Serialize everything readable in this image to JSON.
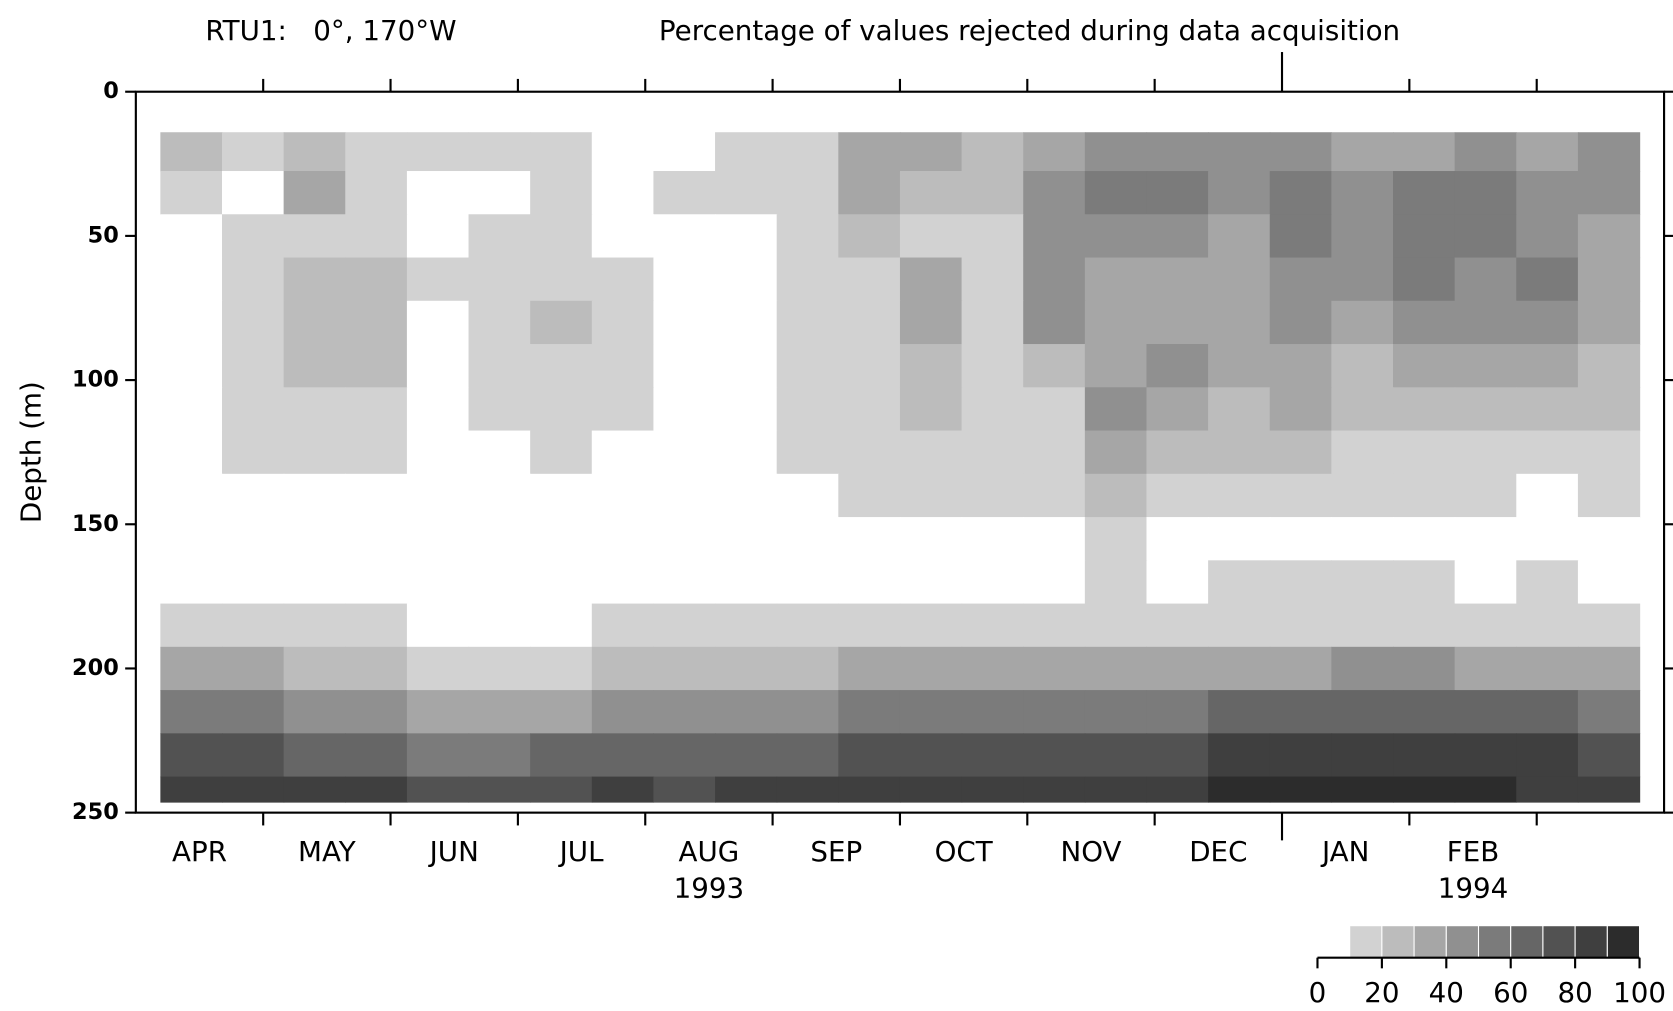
{
  "chart_data": {
    "type": "contour",
    "title": "RTU1:   0°, 170°W",
    "subtitle": "Percentage of values rejected during data acquisition",
    "ylabel": "Depth (m)",
    "ylim": [
      0,
      250
    ],
    "yticks": [
      0,
      50,
      100,
      150,
      200,
      250
    ],
    "categories": [
      "APR",
      "MAY",
      "JUN",
      "JUL",
      "AUG",
      "SEP",
      "OCT",
      "NOV",
      "DEC",
      "JAN",
      "FEB",
      null
    ],
    "years": [
      null,
      null,
      null,
      null,
      "1993",
      null,
      null,
      null,
      null,
      null,
      "1994",
      null
    ],
    "y": [
      20,
      35,
      50,
      65,
      80,
      95,
      110,
      125,
      140,
      155,
      170,
      185,
      200,
      215,
      230,
      245
    ],
    "z": [
      [
        25,
        15,
        25,
        15,
        12,
        12,
        15,
        5,
        5,
        12,
        15,
        35,
        35,
        25,
        35,
        45,
        45,
        45,
        45,
        35,
        35,
        45,
        35,
        45
      ],
      [
        15,
        5,
        35,
        15,
        5,
        5,
        15,
        5,
        12,
        12,
        15,
        35,
        25,
        25,
        45,
        55,
        55,
        45,
        55,
        45,
        55,
        55,
        45,
        45
      ],
      [
        5,
        12,
        15,
        15,
        5,
        12,
        15,
        5,
        5,
        5,
        15,
        25,
        15,
        15,
        45,
        45,
        45,
        35,
        50,
        45,
        55,
        55,
        45,
        35
      ],
      [
        5,
        15,
        25,
        25,
        12,
        15,
        15,
        15,
        5,
        5,
        15,
        15,
        35,
        15,
        45,
        35,
        35,
        35,
        45,
        45,
        55,
        45,
        55,
        35
      ],
      [
        5,
        15,
        25,
        25,
        5,
        15,
        25,
        15,
        5,
        5,
        15,
        15,
        35,
        15,
        45,
        35,
        35,
        35,
        45,
        35,
        45,
        45,
        45,
        35
      ],
      [
        5,
        15,
        22,
        25,
        5,
        15,
        15,
        15,
        5,
        5,
        15,
        15,
        25,
        15,
        25,
        35,
        45,
        35,
        35,
        25,
        35,
        35,
        35,
        25
      ],
      [
        5,
        15,
        15,
        18,
        5,
        12,
        15,
        12,
        5,
        5,
        15,
        15,
        22,
        15,
        15,
        45,
        35,
        25,
        35,
        25,
        25,
        25,
        25,
        25
      ],
      [
        5,
        15,
        15,
        15,
        5,
        5,
        12,
        5,
        5,
        5,
        15,
        15,
        15,
        15,
        15,
        35,
        25,
        25,
        25,
        15,
        15,
        15,
        15,
        15
      ],
      [
        5,
        5,
        5,
        5,
        5,
        5,
        5,
        5,
        5,
        5,
        5,
        12,
        12,
        12,
        12,
        25,
        15,
        15,
        15,
        12,
        15,
        12,
        5,
        15
      ],
      [
        5,
        5,
        5,
        5,
        5,
        5,
        5,
        5,
        5,
        5,
        5,
        5,
        5,
        5,
        5,
        12,
        5,
        5,
        5,
        5,
        5,
        5,
        5,
        5
      ],
      [
        5,
        5,
        5,
        5,
        5,
        5,
        5,
        5,
        5,
        5,
        5,
        5,
        5,
        5,
        5,
        12,
        5,
        12,
        12,
        12,
        12,
        5,
        12,
        5
      ],
      [
        15,
        15,
        12,
        12,
        8,
        8,
        8,
        10,
        10,
        12,
        12,
        15,
        15,
        15,
        15,
        15,
        15,
        15,
        15,
        15,
        15,
        15,
        15,
        15
      ],
      [
        35,
        35,
        25,
        22,
        15,
        15,
        15,
        25,
        22,
        20,
        25,
        30,
        35,
        30,
        35,
        30,
        35,
        35,
        35,
        40,
        40,
        35,
        35,
        30
      ],
      [
        55,
        55,
        45,
        40,
        35,
        30,
        35,
        45,
        40,
        40,
        45,
        50,
        55,
        50,
        55,
        55,
        55,
        60,
        60,
        60,
        65,
        60,
        60,
        55
      ],
      [
        70,
        70,
        65,
        60,
        55,
        55,
        60,
        65,
        60,
        65,
        65,
        70,
        70,
        70,
        75,
        70,
        75,
        80,
        80,
        80,
        80,
        80,
        80,
        75
      ],
      [
        80,
        80,
        80,
        80,
        70,
        70,
        75,
        80,
        75,
        80,
        80,
        85,
        85,
        85,
        85,
        80,
        85,
        90,
        90,
        90,
        90,
        90,
        85,
        85
      ]
    ],
    "levels": [
      10,
      20,
      30,
      40,
      50,
      60,
      70,
      80,
      90,
      100
    ],
    "colors": [
      "#d2d2d2",
      "#bcbcbc",
      "#a6a6a6",
      "#909090",
      "#7b7b7b",
      "#666666",
      "#525252",
      "#3f3f3f",
      "#2c2c2c"
    ],
    "clim": [
      0,
      100
    ],
    "cticks": [
      0,
      20,
      40,
      60,
      80,
      100
    ]
  }
}
